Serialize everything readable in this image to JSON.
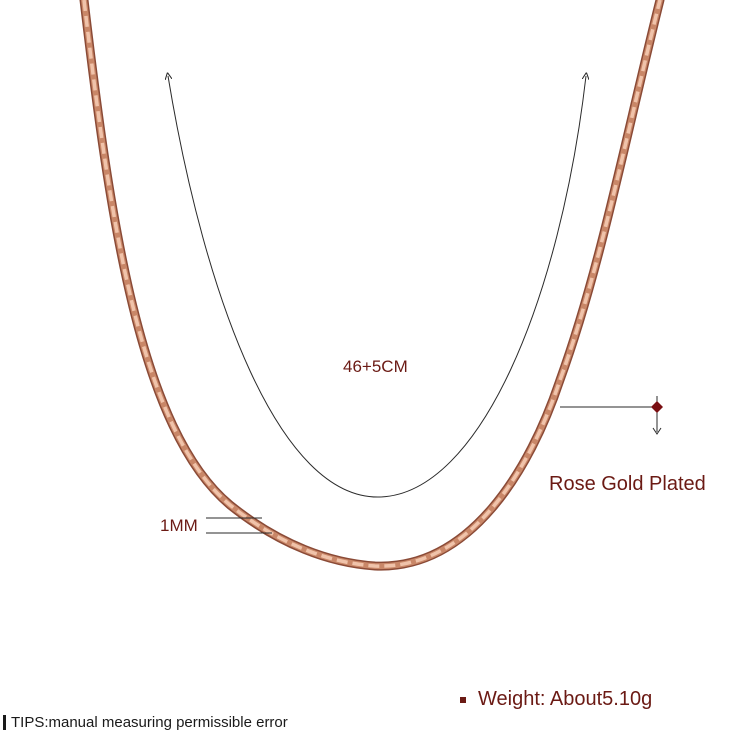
{
  "product": {
    "length_label": "46+5CM",
    "width_label": "1MM",
    "plating_label": "Rose Gold Plated",
    "weight_label": "Weight: About5.10g",
    "tips_label": "TIPS:manual measuring permissible error"
  },
  "colors": {
    "chain_dark": "#8a4a36",
    "chain_mid": "#c98768",
    "chain_light": "#f0c3aa",
    "label_text": "#6b1a14",
    "line": "#2a2a2a"
  }
}
